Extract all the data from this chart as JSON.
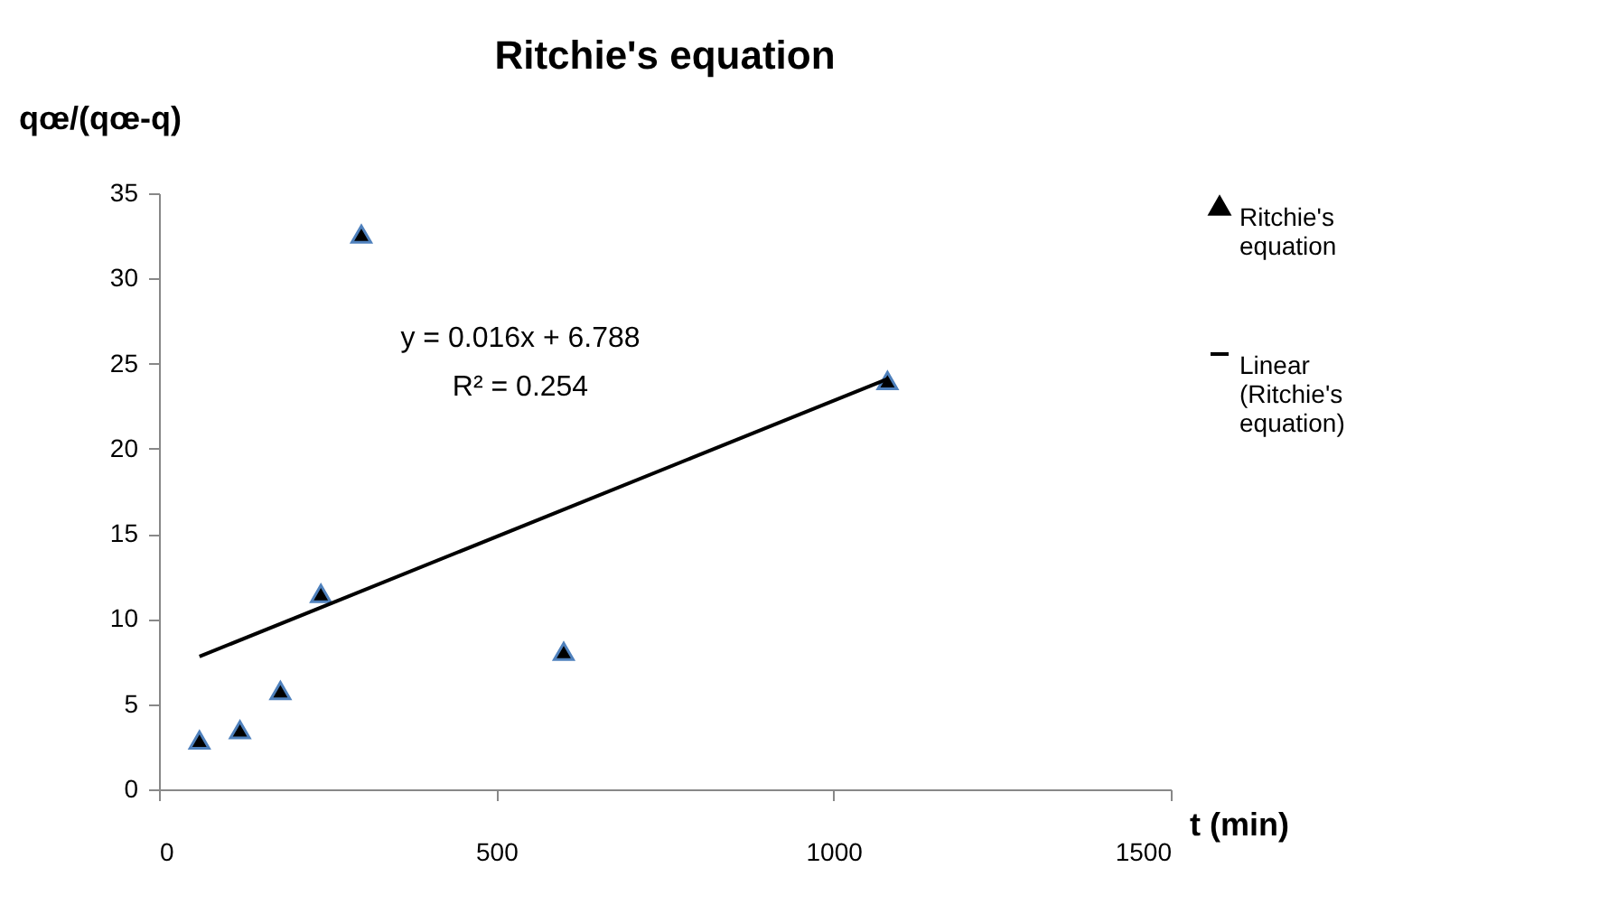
{
  "chart_data": {
    "type": "scatter",
    "title": "Ritchie's equation",
    "xlabel": "t (min)",
    "ylabel": "qœ/(qœ-q)",
    "xlim": [
      0,
      1500
    ],
    "xticks": [
      0,
      500,
      1000,
      1500
    ],
    "ylim": [
      0,
      35
    ],
    "yticks": [
      0,
      5,
      10,
      15,
      20,
      25,
      30,
      35
    ],
    "grid": false,
    "legend": "right",
    "annotations": [
      "y = 0.016x + 6.788",
      "R² = 0.254"
    ],
    "series": [
      {
        "name": "Ritchie's equation",
        "type": "scatter",
        "marker": "triangle",
        "color": "#000000",
        "x": [
          60,
          120,
          180,
          240,
          300,
          600,
          1080
        ],
        "values": [
          2.9,
          3.5,
          5.8,
          11.5,
          32.6,
          8.1,
          24.0
        ]
      },
      {
        "name": "Linear (Ritchie's equation)",
        "type": "line",
        "marker": "none",
        "color": "#000000",
        "x": [
          60,
          1080
        ],
        "values": [
          7.8,
          24.1
        ]
      }
    ]
  }
}
